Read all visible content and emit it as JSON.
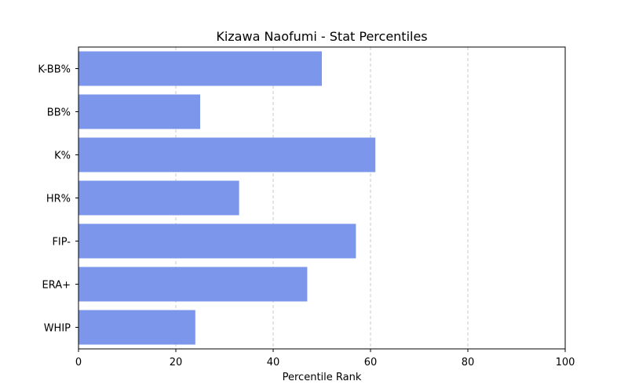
{
  "chart_data": {
    "type": "bar",
    "orientation": "horizontal",
    "title": "Kizawa Naofumi - Stat Percentiles",
    "xlabel": "Percentile Rank",
    "ylabel": "",
    "xlim": [
      0,
      100
    ],
    "x_ticks": [
      0,
      20,
      40,
      60,
      80,
      100
    ],
    "grid": "x-axis dashed",
    "bar_color": "#7b96ea",
    "categories": [
      "K-BB%",
      "BB%",
      "K%",
      "HR%",
      "FIP-",
      "ERA+",
      "WHIP"
    ],
    "values": [
      50,
      25,
      61,
      33,
      57,
      47,
      24
    ]
  }
}
